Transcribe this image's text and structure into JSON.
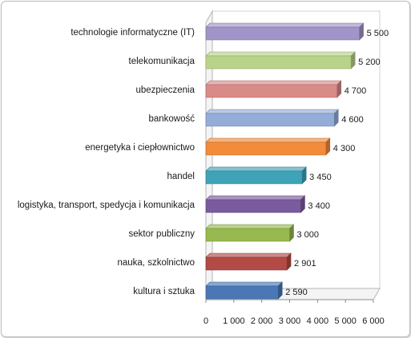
{
  "chart_data": {
    "type": "bar",
    "orientation": "horizontal",
    "three_d": true,
    "categories": [
      "technologie informatyczne  (IT)",
      "telekomunikacja",
      "ubezpieczenia",
      "bankowość",
      "energetyka i ciepłownictwo",
      "handel",
      "logistyka,  transport,  spedycja i komunikacja",
      "sektor publiczny",
      "nauka,  szkolnictwo",
      "kultura i sztuka"
    ],
    "values": [
      5500,
      5200,
      4700,
      4600,
      4300,
      3450,
      3400,
      3000,
      2901,
      2590
    ],
    "value_labels": [
      "5 500",
      "5 200",
      "4 700",
      "4 600",
      "4 300",
      "3 450",
      "3 400",
      "3 000",
      "2 901",
      "2 590"
    ],
    "colors": [
      "#a094c8",
      "#b9d38a",
      "#d98b88",
      "#94acd8",
      "#f28b3a",
      "#3fa3b8",
      "#7a5b9e",
      "#98b94f",
      "#b24a46",
      "#4a78b7"
    ],
    "xticks": [
      "0",
      "1 000",
      "2 000",
      "3 000",
      "4 000",
      "5 000",
      "6 000"
    ],
    "xlim": [
      0,
      6000
    ],
    "grid": false,
    "legend": false
  }
}
